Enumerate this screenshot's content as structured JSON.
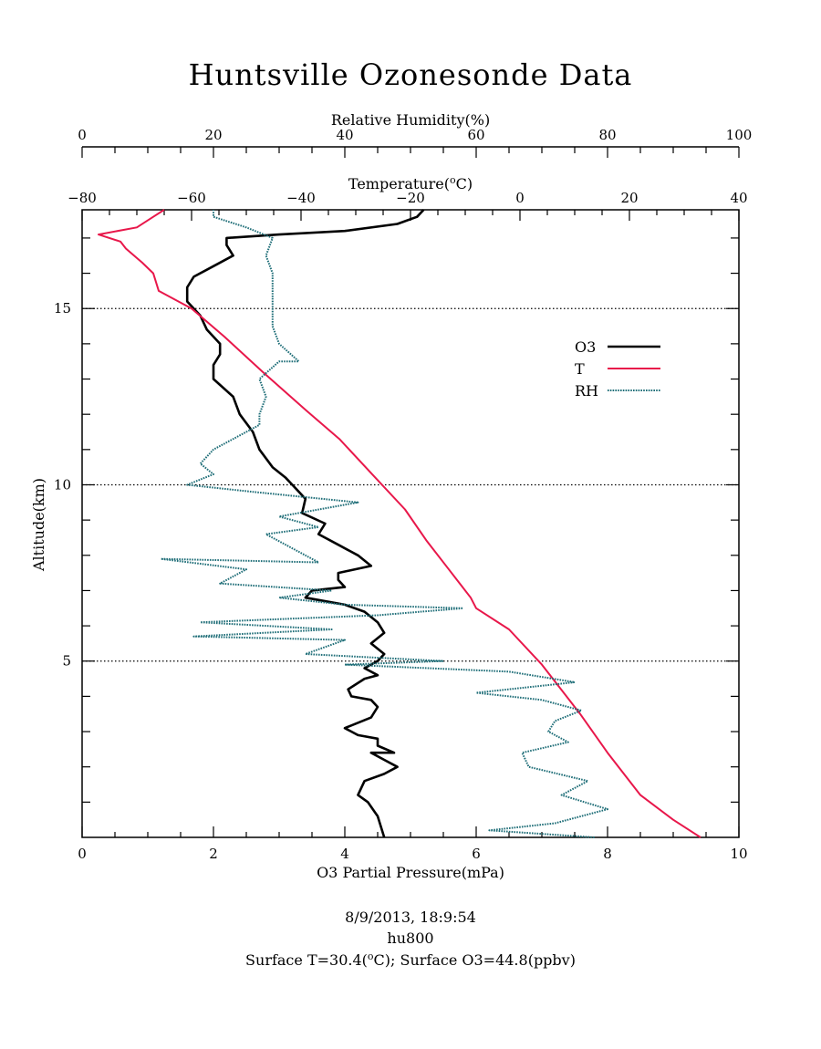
{
  "chart_data": {
    "type": "line",
    "title": "Huntsville Ozonesonde Data",
    "axes": {
      "ozone": {
        "label": "O3 Partial Pressure(mPa)",
        "range": [
          0,
          10
        ],
        "ticks": [
          "0",
          "2",
          "4",
          "6",
          "8",
          "10"
        ]
      },
      "humidity": {
        "label": "Relative Humidity(%)",
        "range": [
          0,
          100
        ],
        "ticks": [
          "0",
          "20",
          "40",
          "60",
          "80",
          "100"
        ]
      },
      "temperature": {
        "label_main": "Temperature(",
        "label_sup": "o",
        "label_end": "C)",
        "range": [
          -80,
          40
        ],
        "ticks": [
          "−80",
          "−60",
          "−40",
          "−20",
          "0",
          "20",
          "40"
        ]
      },
      "altitude": {
        "label": "Altitude(km)",
        "range": [
          0,
          17.8
        ],
        "ticks": [
          "5",
          "10",
          "15"
        ],
        "gridlines": [
          5,
          10,
          15
        ]
      }
    },
    "legend": {
      "placement": "right",
      "items": [
        {
          "label": "O3",
          "color": "#000000"
        },
        {
          "label": "T",
          "color": "#e8174a"
        },
        {
          "label": "RH",
          "color": "#1f6e78"
        }
      ]
    },
    "series": [
      {
        "name": "O3",
        "axis": "ozone",
        "color": "#000000",
        "points": [
          [
            4.6,
            0.0
          ],
          [
            4.55,
            0.3
          ],
          [
            4.5,
            0.6
          ],
          [
            4.35,
            1.0
          ],
          [
            4.2,
            1.2
          ],
          [
            4.3,
            1.6
          ],
          [
            4.6,
            1.8
          ],
          [
            4.8,
            2.0
          ],
          [
            4.6,
            2.2
          ],
          [
            4.4,
            2.4
          ],
          [
            4.75,
            2.4
          ],
          [
            4.5,
            2.6
          ],
          [
            4.5,
            2.8
          ],
          [
            4.2,
            2.9
          ],
          [
            4.0,
            3.1
          ],
          [
            4.4,
            3.4
          ],
          [
            4.5,
            3.7
          ],
          [
            4.4,
            3.9
          ],
          [
            4.1,
            4.0
          ],
          [
            4.05,
            4.2
          ],
          [
            4.3,
            4.5
          ],
          [
            4.5,
            4.6
          ],
          [
            4.3,
            4.8
          ],
          [
            4.5,
            5.0
          ],
          [
            4.6,
            5.2
          ],
          [
            4.4,
            5.5
          ],
          [
            4.6,
            5.8
          ],
          [
            4.5,
            6.1
          ],
          [
            4.3,
            6.4
          ],
          [
            4.0,
            6.6
          ],
          [
            3.4,
            6.8
          ],
          [
            3.5,
            7.0
          ],
          [
            4.0,
            7.1
          ],
          [
            3.9,
            7.3
          ],
          [
            3.9,
            7.5
          ],
          [
            4.4,
            7.7
          ],
          [
            4.2,
            8.0
          ],
          [
            3.9,
            8.3
          ],
          [
            3.6,
            8.6
          ],
          [
            3.7,
            8.9
          ],
          [
            3.35,
            9.2
          ],
          [
            3.4,
            9.6
          ],
          [
            3.25,
            9.9
          ],
          [
            3.1,
            10.2
          ],
          [
            2.9,
            10.5
          ],
          [
            2.7,
            11.0
          ],
          [
            2.6,
            11.5
          ],
          [
            2.4,
            12.0
          ],
          [
            2.3,
            12.5
          ],
          [
            2.0,
            13.0
          ],
          [
            2.0,
            13.4
          ],
          [
            2.1,
            13.7
          ],
          [
            2.1,
            14.0
          ],
          [
            1.9,
            14.4
          ],
          [
            1.8,
            14.8
          ],
          [
            1.6,
            15.2
          ],
          [
            1.6,
            15.6
          ],
          [
            1.7,
            15.9
          ],
          [
            2.0,
            16.2
          ],
          [
            2.3,
            16.5
          ],
          [
            2.2,
            16.8
          ],
          [
            2.2,
            17.0
          ],
          [
            3.0,
            17.1
          ],
          [
            4.0,
            17.2
          ],
          [
            4.8,
            17.4
          ],
          [
            5.1,
            17.6
          ],
          [
            5.2,
            17.8
          ]
        ]
      },
      {
        "name": "T",
        "axis": "temperature",
        "color": "#e8174a",
        "points": [
          [
            33,
            0.0
          ],
          [
            28,
            0.5
          ],
          [
            22,
            1.2
          ],
          [
            16,
            2.4
          ],
          [
            11,
            3.5
          ],
          [
            4,
            4.9
          ],
          [
            -2,
            5.9
          ],
          [
            -8,
            6.5
          ],
          [
            -9,
            6.8
          ],
          [
            -13,
            7.6
          ],
          [
            -17,
            8.4
          ],
          [
            -21,
            9.3
          ],
          [
            -27,
            10.3
          ],
          [
            -33,
            11.3
          ],
          [
            -39,
            12.1
          ],
          [
            -47,
            13.2
          ],
          [
            -54,
            14.2
          ],
          [
            -60,
            15.0
          ],
          [
            -66,
            15.5
          ],
          [
            -67,
            16.0
          ],
          [
            -69,
            16.3
          ],
          [
            -72,
            16.7
          ],
          [
            -73,
            16.9
          ],
          [
            -77,
            17.1
          ],
          [
            -70,
            17.3
          ],
          [
            -67,
            17.6
          ],
          [
            -65,
            17.8
          ]
        ]
      },
      {
        "name": "RH",
        "axis": "humidity",
        "color": "#1f6e78",
        "points": [
          [
            78,
            0.0
          ],
          [
            62,
            0.2
          ],
          [
            72,
            0.4
          ],
          [
            80,
            0.8
          ],
          [
            73,
            1.2
          ],
          [
            77,
            1.6
          ],
          [
            68,
            2.0
          ],
          [
            67,
            2.4
          ],
          [
            74,
            2.7
          ],
          [
            71,
            3.0
          ],
          [
            72,
            3.3
          ],
          [
            76,
            3.6
          ],
          [
            70,
            3.9
          ],
          [
            60,
            4.1
          ],
          [
            75,
            4.4
          ],
          [
            65,
            4.7
          ],
          [
            40,
            4.9
          ],
          [
            55,
            5.0
          ],
          [
            34,
            5.2
          ],
          [
            40,
            5.6
          ],
          [
            17,
            5.7
          ],
          [
            38,
            5.9
          ],
          [
            18,
            6.1
          ],
          [
            45,
            6.3
          ],
          [
            58,
            6.5
          ],
          [
            40,
            6.6
          ],
          [
            30,
            6.8
          ],
          [
            38,
            7.0
          ],
          [
            21,
            7.2
          ],
          [
            25,
            7.6
          ],
          [
            12,
            7.9
          ],
          [
            36,
            7.8
          ],
          [
            32,
            8.2
          ],
          [
            28,
            8.6
          ],
          [
            36,
            8.8
          ],
          [
            30,
            9.1
          ],
          [
            42,
            9.5
          ],
          [
            26,
            9.8
          ],
          [
            16,
            10.0
          ],
          [
            20,
            10.3
          ],
          [
            18,
            10.6
          ],
          [
            20,
            11.0
          ],
          [
            23,
            11.3
          ],
          [
            27,
            11.7
          ],
          [
            27,
            12.0
          ],
          [
            28,
            12.5
          ],
          [
            27,
            13.0
          ],
          [
            30,
            13.5
          ],
          [
            33,
            13.5
          ],
          [
            30,
            14.0
          ],
          [
            29,
            14.5
          ],
          [
            29,
            15.0
          ],
          [
            29,
            15.5
          ],
          [
            29,
            16.0
          ],
          [
            28,
            16.5
          ],
          [
            29,
            17.0
          ],
          [
            25,
            17.3
          ],
          [
            20,
            17.6
          ],
          [
            20,
            17.8
          ]
        ]
      }
    ],
    "footer": {
      "date_line": "8/9/2013, 18:9:54",
      "station": "hu800",
      "surface_prefix": "Surface T=30.4(",
      "surface_sup": "o",
      "surface_suffix": "C); Surface O3=44.8(ppbv)"
    }
  }
}
